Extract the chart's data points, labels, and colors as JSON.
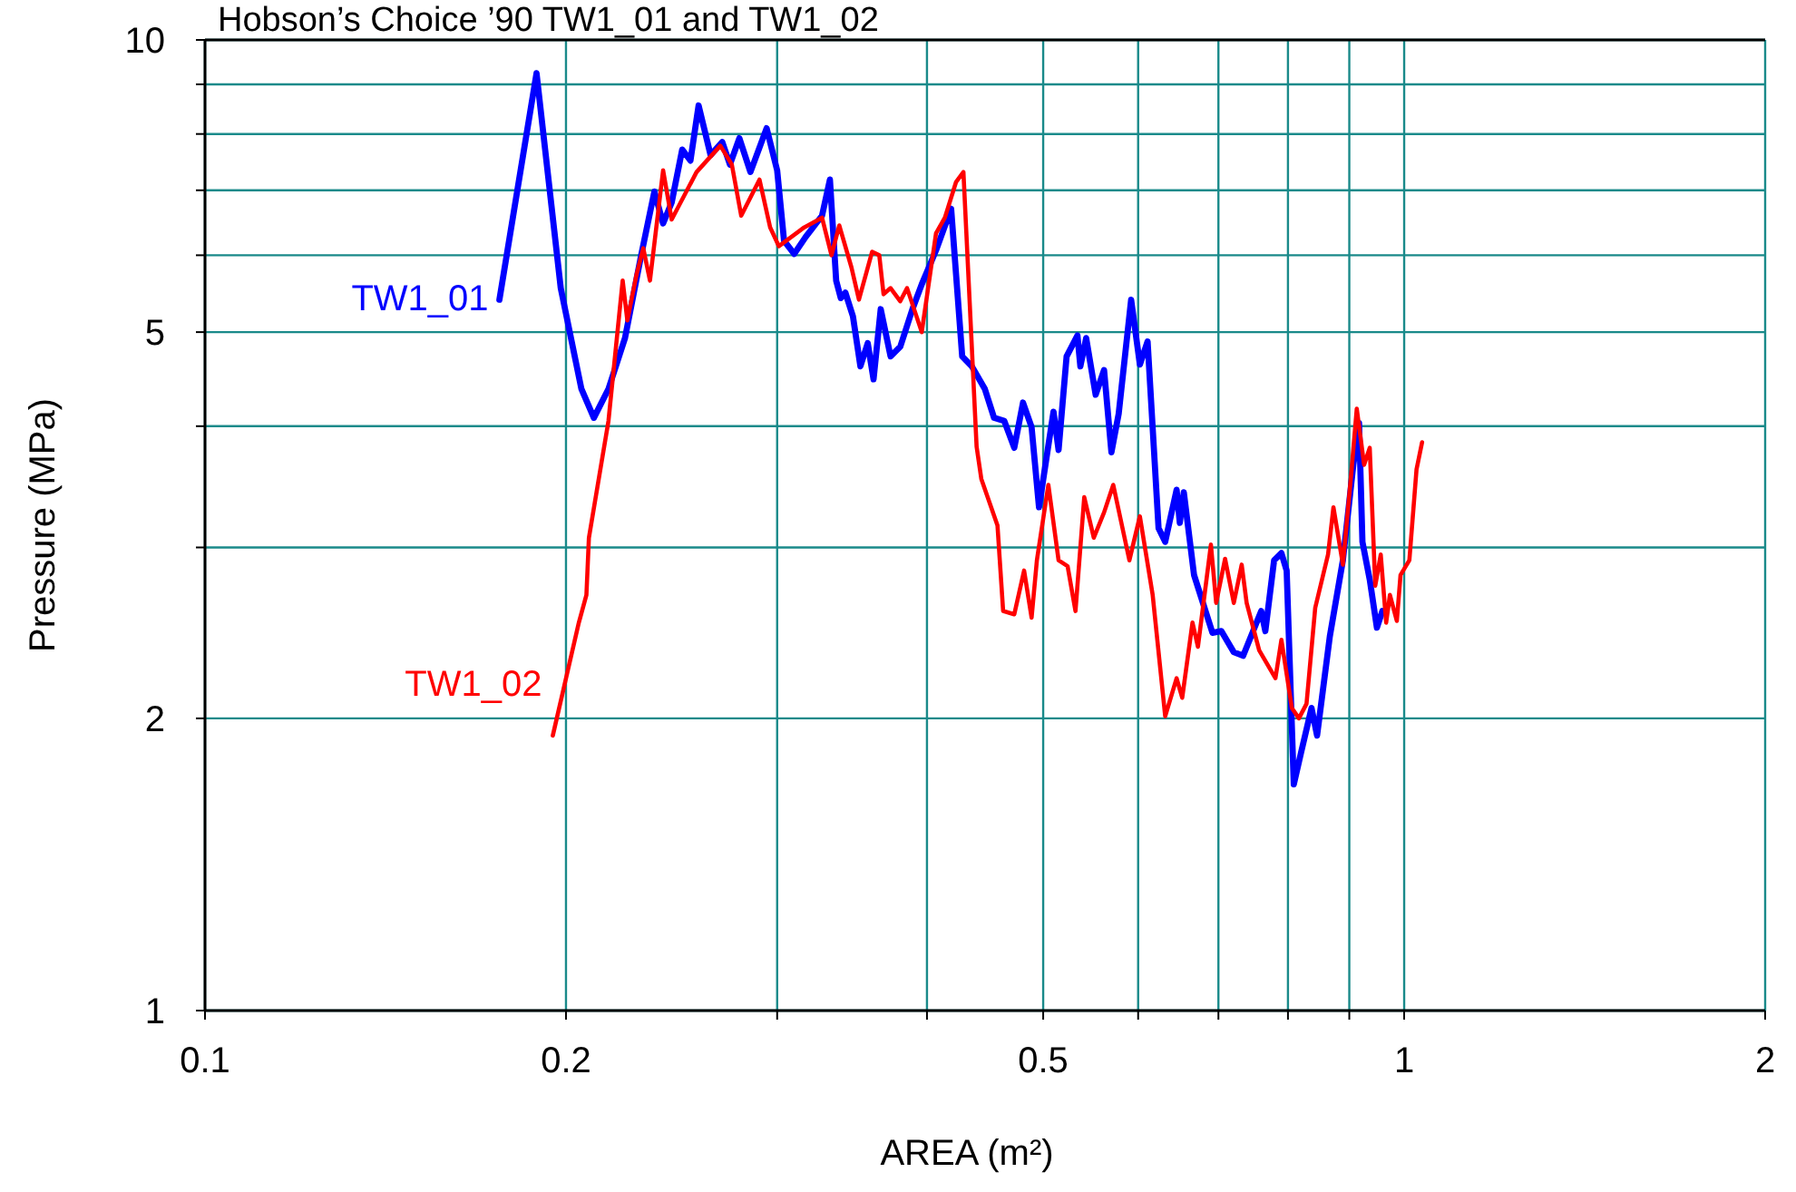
{
  "chart_data": {
    "type": "line",
    "title": "Hobson’s Choice ’90 TW1_01 and TW1_02",
    "xlabel": "AREA (m²)",
    "ylabel": "Pressure (MPa)",
    "log": "xy",
    "grid": true,
    "marker": "none",
    "line_style": "solid",
    "xlim": [
      0.1,
      2
    ],
    "ylim": [
      1,
      10
    ],
    "xticks": [
      0.1,
      0.2,
      {
        "value": 0.3,
        "label": null
      },
      {
        "value": 0.4,
        "label": null
      },
      0.5,
      {
        "value": 0.6,
        "label": null
      },
      {
        "value": 0.7,
        "label": null
      },
      {
        "value": 0.8,
        "label": null
      },
      {
        "value": 0.9,
        "label": null
      },
      1,
      2
    ],
    "yticks": [
      1,
      2,
      {
        "value": 3,
        "label": null
      },
      {
        "value": 4,
        "label": null
      },
      5,
      {
        "value": 6,
        "label": null
      },
      {
        "value": 7,
        "label": null
      },
      {
        "value": 8,
        "label": null
      },
      {
        "value": 9,
        "label": null
      },
      10
    ],
    "series": [
      {
        "name": "TW1_01",
        "color": "#0000ff",
        "x": [
          0.176,
          0.189,
          0.198,
          0.206,
          0.211,
          0.217,
          0.224,
          0.231,
          0.237,
          0.241,
          0.245,
          0.25,
          0.254,
          0.258,
          0.264,
          0.27,
          0.274,
          0.279,
          0.285,
          0.294,
          0.3,
          0.304,
          0.31,
          0.317,
          0.327,
          0.332,
          0.336,
          0.339,
          0.342,
          0.347,
          0.352,
          0.357,
          0.361,
          0.366,
          0.373,
          0.38,
          0.389,
          0.396,
          0.407,
          0.419,
          0.428,
          0.436,
          0.447,
          0.455,
          0.464,
          0.473,
          0.481,
          0.489,
          0.496,
          0.51,
          0.515,
          0.523,
          0.534,
          0.537,
          0.543,
          0.553,
          0.562,
          0.57,
          0.578,
          0.592,
          0.602,
          0.611,
          0.624,
          0.632,
          0.646,
          0.65,
          0.655,
          0.668,
          0.692,
          0.704,
          0.721,
          0.734,
          0.76,
          0.766,
          0.779,
          0.79,
          0.798,
          0.809,
          0.82,
          0.837,
          0.846,
          0.867,
          0.889,
          0.907,
          0.917,
          0.923,
          0.936,
          0.949,
          0.959
        ],
        "values": [
          5.4,
          9.24,
          5.55,
          4.37,
          4.08,
          4.37,
          4.93,
          5.99,
          6.98,
          6.47,
          6.8,
          7.71,
          7.51,
          8.56,
          7.61,
          7.85,
          7.44,
          7.92,
          7.31,
          8.11,
          7.34,
          6.21,
          6.02,
          6.27,
          6.59,
          7.18,
          5.65,
          5.42,
          5.49,
          5.19,
          4.61,
          4.87,
          4.47,
          5.28,
          4.72,
          4.83,
          5.28,
          5.6,
          6.07,
          6.7,
          4.72,
          4.61,
          4.37,
          4.08,
          4.05,
          3.8,
          4.23,
          3.99,
          3.3,
          4.14,
          3.78,
          4.72,
          4.96,
          4.61,
          4.93,
          4.31,
          4.57,
          3.76,
          4.12,
          5.4,
          4.63,
          4.89,
          3.14,
          3.04,
          3.44,
          3.18,
          3.42,
          2.81,
          2.45,
          2.46,
          2.34,
          2.32,
          2.58,
          2.46,
          2.91,
          2.96,
          2.84,
          1.71,
          1.84,
          2.05,
          1.92,
          2.43,
          2.91,
          3.65,
          4.03,
          3.04,
          2.78,
          2.48,
          2.58
        ]
      },
      {
        "name": "TW1_02",
        "color": "#ff0000",
        "x": [
          0.195,
          0.205,
          0.208,
          0.209,
          0.217,
          0.223,
          0.225,
          0.229,
          0.232,
          0.235,
          0.241,
          0.245,
          0.257,
          0.269,
          0.275,
          0.28,
          0.29,
          0.296,
          0.301,
          0.316,
          0.327,
          0.333,
          0.338,
          0.346,
          0.351,
          0.36,
          0.365,
          0.368,
          0.373,
          0.38,
          0.385,
          0.396,
          0.407,
          0.414,
          0.423,
          0.429,
          0.44,
          0.444,
          0.458,
          0.463,
          0.473,
          0.482,
          0.489,
          0.494,
          0.505,
          0.515,
          0.524,
          0.532,
          0.541,
          0.551,
          0.562,
          0.572,
          0.59,
          0.602,
          0.617,
          0.632,
          0.646,
          0.653,
          0.666,
          0.673,
          0.69,
          0.697,
          0.709,
          0.721,
          0.732,
          0.739,
          0.757,
          0.781,
          0.79,
          0.806,
          0.817,
          0.829,
          0.843,
          0.864,
          0.873,
          0.889,
          0.904,
          0.913,
          0.926,
          0.936,
          0.946,
          0.956,
          0.966,
          0.973,
          0.986,
          0.993,
          1.01,
          1.024,
          1.035
        ],
        "values": [
          1.92,
          2.51,
          2.68,
          3.07,
          4.05,
          5.65,
          5.14,
          5.73,
          6.1,
          5.65,
          7.34,
          6.53,
          7.31,
          7.78,
          7.44,
          6.59,
          7.18,
          6.41,
          6.13,
          6.41,
          6.56,
          6.0,
          6.44,
          5.83,
          5.4,
          6.05,
          6.0,
          5.47,
          5.55,
          5.38,
          5.55,
          5.0,
          6.32,
          6.56,
          7.14,
          7.31,
          3.81,
          3.53,
          3.16,
          2.58,
          2.56,
          2.84,
          2.54,
          2.91,
          3.48,
          2.91,
          2.87,
          2.58,
          3.38,
          3.07,
          3.26,
          3.48,
          2.91,
          3.23,
          2.68,
          2.01,
          2.2,
          2.1,
          2.51,
          2.37,
          3.02,
          2.63,
          2.92,
          2.63,
          2.88,
          2.63,
          2.35,
          2.2,
          2.41,
          2.05,
          2.0,
          2.07,
          2.6,
          2.95,
          3.3,
          2.88,
          3.61,
          4.17,
          3.65,
          3.8,
          2.74,
          2.95,
          2.51,
          2.68,
          2.52,
          2.81,
          2.91,
          3.61,
          3.85
        ]
      }
    ]
  }
}
